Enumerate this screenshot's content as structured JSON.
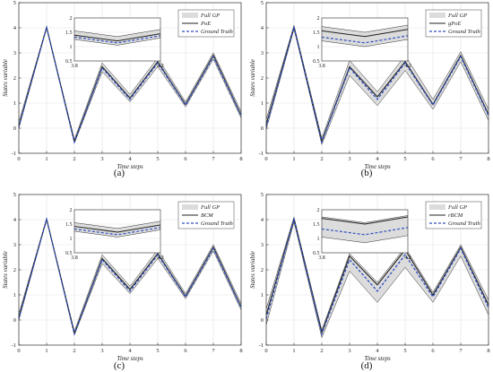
{
  "chart_data": [
    {
      "panel_label": "(a)",
      "type": "line",
      "xlabel": "Time steps",
      "ylabel": "States variable",
      "xlim": [
        0,
        8
      ],
      "ylim": [
        -1,
        5
      ],
      "x_ticks": [
        "0",
        "1",
        "2",
        "3",
        "4",
        "5",
        "6",
        "7",
        "8"
      ],
      "y_ticks": [
        "-1",
        "0",
        "1",
        "2",
        "3",
        "4",
        "5"
      ],
      "grid": true,
      "legend": {
        "placement": "top-right",
        "entries": [
          "Full GP",
          "PoE",
          "Ground Truth"
        ]
      },
      "x": [
        0,
        1,
        2,
        3,
        4,
        5,
        6,
        7,
        8
      ],
      "series": [
        {
          "name": "Full GP",
          "style": "band",
          "lower": [
            0.0,
            4.0,
            -0.6,
            2.25,
            1.05,
            2.45,
            0.85,
            2.75,
            0.4
          ],
          "upper": [
            0.25,
            4.05,
            -0.45,
            2.6,
            1.35,
            2.8,
            1.05,
            3.0,
            0.65
          ]
        },
        {
          "name": "PoE",
          "style": "solid",
          "values": [
            0.08,
            4.02,
            -0.55,
            2.45,
            1.2,
            2.65,
            0.95,
            2.9,
            0.52
          ]
        },
        {
          "name": "Ground Truth",
          "style": "dashed",
          "values": [
            0.05,
            4.01,
            -0.55,
            2.4,
            1.15,
            2.6,
            0.92,
            2.85,
            0.5
          ]
        }
      ],
      "inset": {
        "xlim": [
          3.8,
          4.2
        ],
        "ylim": [
          0.5,
          2
        ],
        "x_ticks": [
          "3.8",
          "4.2"
        ],
        "y_ticks": [
          "0.5",
          "1",
          "1.5",
          "2"
        ],
        "x": [
          3.8,
          4.0,
          4.2
        ],
        "band_lower": [
          1.25,
          1.05,
          1.3
        ],
        "band_upper": [
          1.55,
          1.35,
          1.6
        ],
        "method": [
          1.4,
          1.2,
          1.45
        ],
        "truth": [
          1.33,
          1.13,
          1.38
        ]
      }
    },
    {
      "panel_label": "(b)",
      "type": "line",
      "xlabel": "Time steps",
      "ylabel": "States variable",
      "xlim": [
        0,
        8
      ],
      "ylim": [
        -1,
        5
      ],
      "x_ticks": [
        "0",
        "1",
        "2",
        "3",
        "4",
        "5",
        "6",
        "7",
        "8"
      ],
      "y_ticks": [
        "-1",
        "0",
        "1",
        "2",
        "3",
        "4",
        "5"
      ],
      "grid": true,
      "legend": {
        "placement": "top-right",
        "entries": [
          "Full GP",
          "gPoE",
          "Ground Truth"
        ]
      },
      "x": [
        0,
        1,
        2,
        3,
        4,
        5,
        6,
        7,
        8
      ],
      "series": [
        {
          "name": "Full GP",
          "style": "band",
          "lower": [
            -0.05,
            3.95,
            -0.65,
            2.1,
            0.9,
            2.3,
            0.75,
            2.65,
            0.3
          ],
          "upper": [
            0.35,
            4.1,
            -0.4,
            2.7,
            1.45,
            2.9,
            1.15,
            3.05,
            0.75
          ]
        },
        {
          "name": "gPoE",
          "style": "solid",
          "values": [
            0.15,
            4.02,
            -0.52,
            2.45,
            1.25,
            2.65,
            0.95,
            2.9,
            0.55
          ]
        },
        {
          "name": "Ground Truth",
          "style": "dashed",
          "values": [
            0.05,
            4.01,
            -0.55,
            2.4,
            1.15,
            2.6,
            0.92,
            2.85,
            0.5
          ]
        }
      ],
      "inset": {
        "xlim": [
          3.8,
          4.2
        ],
        "ylim": [
          0.5,
          2
        ],
        "x_ticks": [
          "3.8",
          "4.2"
        ],
        "y_ticks": [
          "0.5",
          "1",
          "1.5",
          "2"
        ],
        "x": [
          3.8,
          4.0,
          4.2
        ],
        "band_lower": [
          1.2,
          1.0,
          1.25
        ],
        "band_upper": [
          1.7,
          1.5,
          1.75
        ],
        "method": [
          1.55,
          1.35,
          1.6
        ],
        "truth": [
          1.33,
          1.13,
          1.38
        ]
      }
    },
    {
      "panel_label": "(c)",
      "type": "line",
      "xlabel": "Time steps",
      "ylabel": "States variable",
      "xlim": [
        0,
        8
      ],
      "ylim": [
        -1,
        5
      ],
      "x_ticks": [
        "0",
        "1",
        "2",
        "3",
        "4",
        "5",
        "6",
        "7",
        "8"
      ],
      "y_ticks": [
        "-1",
        "0",
        "1",
        "2",
        "3",
        "4",
        "5"
      ],
      "grid": true,
      "legend": {
        "placement": "top-right",
        "entries": [
          "Full GP",
          "BCM",
          "Ground Truth"
        ]
      },
      "x": [
        0,
        1,
        2,
        3,
        4,
        5,
        6,
        7,
        8
      ],
      "series": [
        {
          "name": "Full GP",
          "style": "band",
          "lower": [
            0.0,
            4.0,
            -0.6,
            2.25,
            1.05,
            2.45,
            0.85,
            2.75,
            0.4
          ],
          "upper": [
            0.25,
            4.05,
            -0.45,
            2.6,
            1.35,
            2.8,
            1.05,
            3.0,
            0.65
          ]
        },
        {
          "name": "BCM",
          "style": "solid",
          "values": [
            0.1,
            4.02,
            -0.55,
            2.45,
            1.22,
            2.65,
            0.95,
            2.9,
            0.52
          ]
        },
        {
          "name": "Ground Truth",
          "style": "dashed",
          "values": [
            0.05,
            4.01,
            -0.55,
            2.4,
            1.15,
            2.6,
            0.92,
            2.85,
            0.5
          ]
        }
      ],
      "inset": {
        "xlim": [
          3.8,
          4.2
        ],
        "ylim": [
          0.5,
          2
        ],
        "x_ticks": [
          "3.8",
          "4.2"
        ],
        "y_ticks": [
          "0.5",
          "1",
          "1.5",
          "2"
        ],
        "x": [
          3.8,
          4.0,
          4.2
        ],
        "band_lower": [
          1.25,
          1.05,
          1.3
        ],
        "band_upper": [
          1.55,
          1.35,
          1.6
        ],
        "method": [
          1.42,
          1.22,
          1.47
        ],
        "truth": [
          1.33,
          1.13,
          1.38
        ]
      }
    },
    {
      "panel_label": "(d)",
      "type": "line",
      "xlabel": "Time steps",
      "ylabel": "States variable",
      "xlim": [
        0,
        8
      ],
      "ylim": [
        -1,
        5
      ],
      "x_ticks": [
        "0",
        "1",
        "2",
        "3",
        "4",
        "5",
        "6",
        "7",
        "8"
      ],
      "y_ticks": [
        "-1",
        "0",
        "1",
        "2",
        "3",
        "4",
        "5"
      ],
      "grid": true,
      "legend": {
        "placement": "top-right",
        "entries": [
          "Full GP",
          "rBCM",
          "Ground Truth"
        ]
      },
      "x": [
        0,
        1,
        2,
        3,
        4,
        5,
        6,
        7,
        8
      ],
      "series": [
        {
          "name": "Full GP",
          "style": "band",
          "lower": [
            -0.2,
            3.9,
            -0.7,
            1.95,
            0.7,
            2.1,
            0.7,
            2.55,
            0.2
          ],
          "upper": [
            0.45,
            4.1,
            -0.4,
            2.65,
            1.5,
            2.9,
            1.1,
            3.0,
            0.8
          ]
        },
        {
          "name": "rBCM",
          "style": "solid",
          "values": [
            0.2,
            4.03,
            -0.5,
            2.55,
            1.4,
            2.8,
            1.0,
            2.9,
            0.6
          ]
        },
        {
          "name": "Ground Truth",
          "style": "dashed",
          "values": [
            0.05,
            4.01,
            -0.55,
            2.4,
            1.15,
            2.6,
            0.92,
            2.85,
            0.5
          ]
        }
      ],
      "inset": {
        "xlim": [
          3.8,
          4.2
        ],
        "ylim": [
          0.5,
          2
        ],
        "x_ticks": [
          "3.8",
          "4.2"
        ],
        "y_ticks": [
          "0.5",
          "1",
          "1.5",
          "2"
        ],
        "x": [
          3.8,
          4.0,
          4.2
        ],
        "band_lower": [
          1.05,
          0.85,
          1.1
        ],
        "band_upper": [
          1.75,
          1.55,
          1.8
        ],
        "method": [
          1.7,
          1.5,
          1.75
        ],
        "truth": [
          1.33,
          1.13,
          1.38
        ]
      }
    }
  ],
  "colors": {
    "band_fill": "#dcdcdc",
    "band_edge": "#333333",
    "method_line": "#222222",
    "truth_line": "#2f4fbf",
    "grid": "#e3e3e3"
  }
}
